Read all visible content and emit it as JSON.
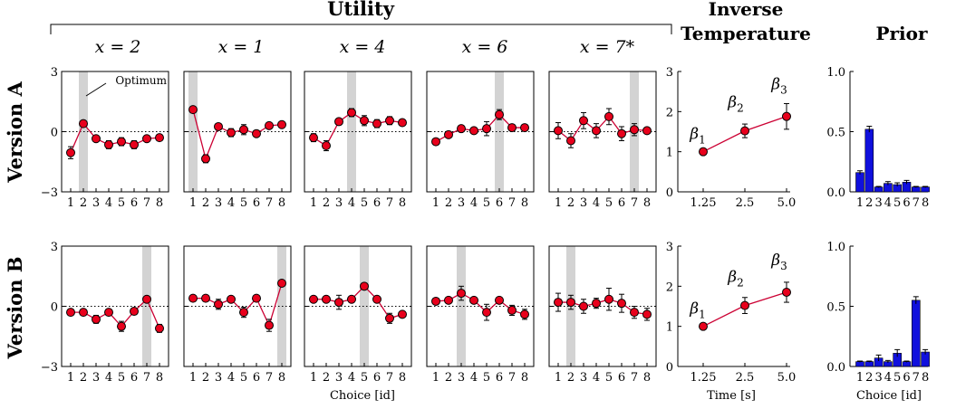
{
  "header": {
    "utility_title": "Utility",
    "inverse_title_line1": "Inverse",
    "inverse_title_line2": "Temperature",
    "prior_title": "Prior"
  },
  "row_labels": [
    "Version A",
    "Version B"
  ],
  "panel_titles": [
    "x = 2",
    "x = 1",
    "x = 4",
    "x = 6",
    "x = 7*"
  ],
  "annotation": "Optimum",
  "xlabels": {
    "utility": "Choice [id]",
    "inverse": "Time [s]",
    "prior": "Choice [id]"
  },
  "colors": {
    "utility_line": "#cc0033",
    "utility_marker": "#e8001c",
    "beta_line": "#cc0033",
    "prior_bar": "#1010dd",
    "optimum_band": "#d3d3d3"
  },
  "chart_data": [
    {
      "type": "line",
      "group": "utility",
      "x": [
        1,
        2,
        3,
        4,
        5,
        6,
        7,
        8
      ],
      "ylim": [
        -3,
        3
      ],
      "yticks": [
        -3,
        0,
        3
      ],
      "xticks": [
        "1",
        "2",
        "3",
        "4",
        "5",
        "6",
        "7",
        "8"
      ],
      "rows": [
        [
          {
            "optimum": 2,
            "values": [
              -1.05,
              0.4,
              -0.35,
              -0.65,
              -0.5,
              -0.65,
              -0.35,
              -0.3
            ],
            "errors": [
              0.3,
              0.15,
              0.15,
              0.2,
              0.2,
              0.2,
              0.15,
              0.15
            ]
          },
          {
            "optimum": 1,
            "values": [
              1.1,
              -1.35,
              0.25,
              -0.05,
              0.1,
              -0.1,
              0.3,
              0.35
            ],
            "errors": [
              0.15,
              0.2,
              0.1,
              0.2,
              0.25,
              0.15,
              0.1,
              0.1
            ]
          },
          {
            "optimum": 4,
            "values": [
              -0.3,
              -0.7,
              0.5,
              0.95,
              0.55,
              0.4,
              0.55,
              0.45
            ],
            "errors": [
              0.2,
              0.25,
              0.15,
              0.2,
              0.25,
              0.2,
              0.2,
              0.15
            ]
          },
          {
            "optimum": 6,
            "values": [
              -0.5,
              -0.15,
              0.15,
              0.05,
              0.15,
              0.85,
              0.2,
              0.2
            ],
            "errors": [
              0.1,
              0.1,
              0.1,
              0.15,
              0.35,
              0.25,
              0.1,
              0.1
            ]
          },
          {
            "optimum": 7,
            "values": [
              0.05,
              -0.45,
              0.55,
              0.05,
              0.75,
              -0.1,
              0.1,
              0.05
            ],
            "errors": [
              0.4,
              0.35,
              0.4,
              0.35,
              0.4,
              0.35,
              0.3,
              0.1
            ]
          }
        ],
        [
          {
            "optimum": 7,
            "values": [
              -0.3,
              -0.3,
              -0.65,
              -0.3,
              -1.0,
              -0.25,
              0.35,
              -1.1
            ],
            "errors": [
              0.1,
              0.1,
              0.2,
              0.1,
              0.25,
              0.1,
              0.1,
              0.2
            ]
          },
          {
            "optimum": 8,
            "values": [
              0.4,
              0.4,
              0.1,
              0.35,
              -0.3,
              0.4,
              -0.95,
              1.15
            ],
            "errors": [
              0.1,
              0.1,
              0.25,
              0.1,
              0.25,
              0.1,
              0.3,
              0.1
            ]
          },
          {
            "optimum": 5,
            "values": [
              0.35,
              0.35,
              0.2,
              0.35,
              1.0,
              0.35,
              -0.6,
              -0.4
            ],
            "errors": [
              0.15,
              0.15,
              0.35,
              0.15,
              0.1,
              0.15,
              0.25,
              0.15
            ]
          },
          {
            "optimum": 3,
            "values": [
              0.25,
              0.3,
              0.65,
              0.3,
              -0.3,
              0.3,
              -0.2,
              -0.4
            ],
            "errors": [
              0.15,
              0.1,
              0.35,
              0.1,
              0.4,
              0.15,
              0.25,
              0.25
            ]
          },
          {
            "optimum": 2,
            "values": [
              0.2,
              0.2,
              0.0,
              0.15,
              0.35,
              0.15,
              -0.3,
              -0.4
            ],
            "errors": [
              0.45,
              0.35,
              0.35,
              0.25,
              0.55,
              0.45,
              0.3,
              0.3
            ]
          }
        ]
      ]
    },
    {
      "type": "line",
      "group": "inverse_temperature",
      "x": [
        1.25,
        2.5,
        5.0
      ],
      "xticks": [
        "1.25",
        "2.5",
        "5.0"
      ],
      "ylim": [
        0,
        3
      ],
      "yticks": [
        0,
        1,
        2,
        3
      ],
      "point_labels": [
        "β1",
        "β2",
        "β3"
      ],
      "rows": [
        {
          "values": [
            1.0,
            1.52,
            1.88
          ],
          "errors": [
            0.03,
            0.17,
            0.32
          ]
        },
        {
          "values": [
            1.0,
            1.52,
            1.85
          ],
          "errors": [
            0.03,
            0.2,
            0.25
          ]
        }
      ]
    },
    {
      "type": "bar",
      "group": "prior",
      "categories": [
        "1",
        "2",
        "3",
        "4",
        "5",
        "6",
        "7",
        "8"
      ],
      "ylim": [
        0,
        1.0
      ],
      "yticks": [
        "0.0",
        "0.5",
        "1.0"
      ],
      "rows": [
        {
          "values": [
            0.16,
            0.52,
            0.04,
            0.07,
            0.06,
            0.08,
            0.04,
            0.04
          ],
          "errors": [
            0.015,
            0.025,
            0.005,
            0.015,
            0.015,
            0.015,
            0.005,
            0.005
          ]
        },
        {
          "values": [
            0.04,
            0.04,
            0.07,
            0.04,
            0.11,
            0.04,
            0.55,
            0.12
          ],
          "errors": [
            0.005,
            0.005,
            0.025,
            0.01,
            0.03,
            0.005,
            0.03,
            0.02
          ]
        }
      ]
    }
  ]
}
